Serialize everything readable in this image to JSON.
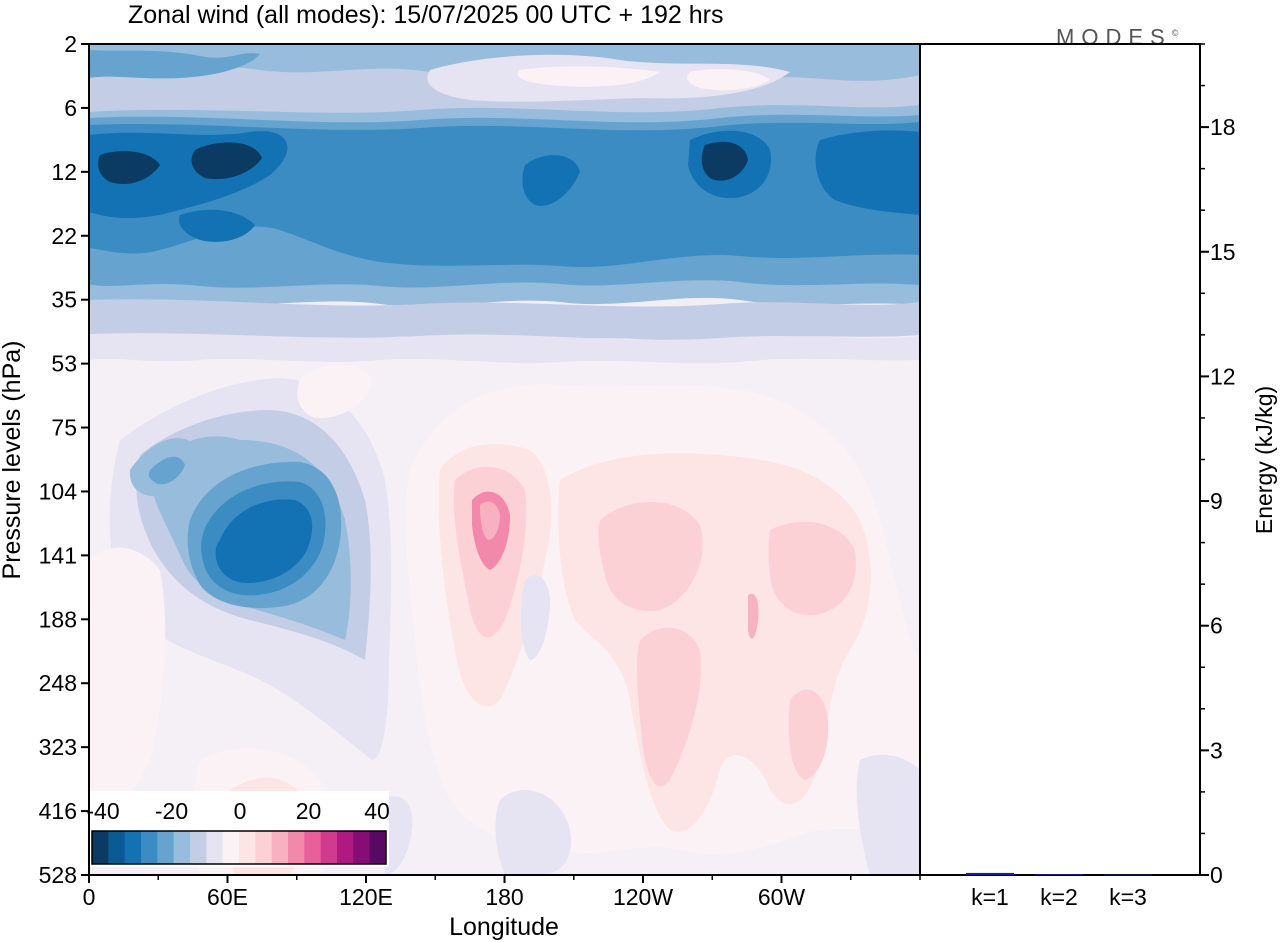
{
  "title": "Zonal wind (all modes):  15/07/2025  00 UTC  + 192 hrs",
  "logo": "MODES",
  "logo_mark": "©",
  "chart_data": [
    {
      "type": "heatmap",
      "title": "Zonal wind (all modes):  15/07/2025  00 UTC  + 192 hrs",
      "xlabel": "Longitude",
      "ylabel": "Pressure levels (hPa)",
      "x_ticks": [
        "0",
        "60E",
        "120E",
        "180",
        "120W",
        "60W"
      ],
      "y_ticks": [
        "2",
        "6",
        "12",
        "22",
        "35",
        "53",
        "75",
        "104",
        "141",
        "188",
        "248",
        "323",
        "416",
        "528"
      ],
      "colorbar": {
        "labels": [
          "-40",
          "-20",
          "0",
          "20",
          "40"
        ],
        "colors": [
          "#0b3a63",
          "#0a5a93",
          "#1372b3",
          "#3b8cc2",
          "#66a4cf",
          "#97bcdc",
          "#c4cde6",
          "#e6e4f2",
          "#fbf2f6",
          "#fde5e6",
          "#fbd1d6",
          "#f8b1c0",
          "#f289ab",
          "#e8609a",
          "#d23a8e",
          "#b01980",
          "#860d76",
          "#560a63"
        ]
      },
      "features": [
        {
          "name": "easterly jet upper stratosphere",
          "lon": [
            0,
            360
          ],
          "level_hpa": [
            10,
            20
          ],
          "value": -35
        },
        {
          "name": "easterlies 22-35 hPa",
          "lon": [
            0,
            360
          ],
          "level_hpa": [
            20,
            40
          ],
          "value": -25
        },
        {
          "name": "weak westerlies near 6 hPa",
          "lon": [
            150,
            300
          ],
          "level_hpa": [
            4,
            7
          ],
          "value": 5
        },
        {
          "name": "tropical easterly jet",
          "lon": [
            60,
            100
          ],
          "level_hpa": [
            100,
            180
          ],
          "value": -35
        },
        {
          "name": "westerly maximum",
          "lon": [
            170,
            180
          ],
          "level_hpa": [
            100,
            160
          ],
          "value": 20
        },
        {
          "name": "westerly maximum",
          "lon": [
            225,
            250
          ],
          "level_hpa": [
            110,
            170
          ],
          "value": 15
        },
        {
          "name": "westerly maximum",
          "lon": [
            290,
            320
          ],
          "level_hpa": [
            120,
            170
          ],
          "value": 15
        }
      ]
    },
    {
      "type": "bar",
      "categories": [
        "k=1",
        "k=2",
        "k=3"
      ],
      "values": [
        0.05,
        0.02,
        0.01
      ],
      "ylabel": "Energy (kJ/kg)",
      "y_ticks": [
        0,
        3,
        6,
        9,
        12,
        15,
        18
      ],
      "ylim": [
        0,
        20
      ],
      "bar_color": "#1a1aa0"
    }
  ]
}
